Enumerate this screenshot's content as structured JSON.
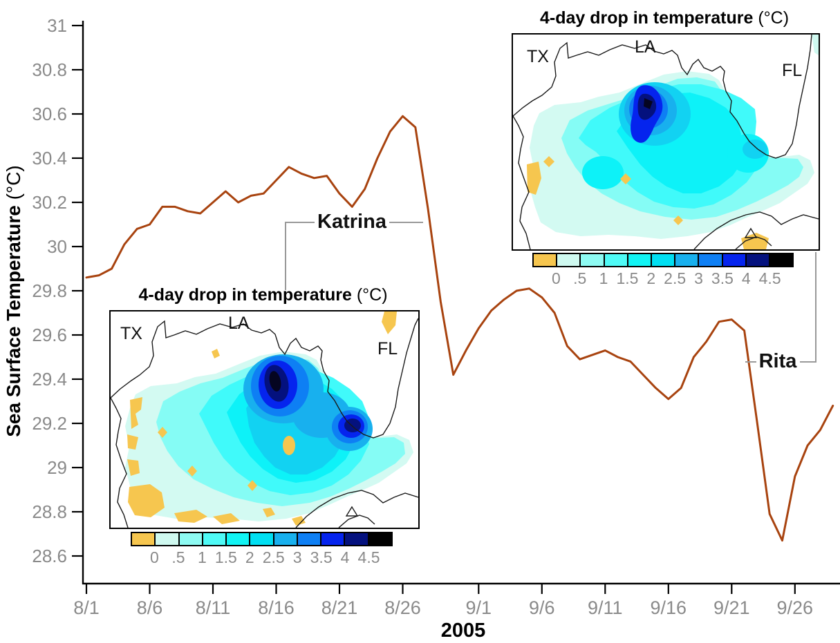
{
  "figure": {
    "xlabel": "2005",
    "ylabel_main": "Sea Surface Temperature",
    "ylabel_units": "(°C)"
  },
  "chart_data": {
    "type": "line",
    "title": "",
    "xlabel": "2005",
    "ylabel": "Sea Surface Temperature (°C)",
    "ylim": [
      28.6,
      31
    ],
    "grid": false,
    "line_color": "#A8430F",
    "y_tick_labels": [
      "31",
      "30.8",
      "30.6",
      "30.4",
      "30.2",
      "30",
      "29.8",
      "29.6",
      "29.4",
      "29.2",
      "29",
      "28.8",
      "28.6"
    ],
    "x_tick_labels": [
      "8/1",
      "8/6",
      "8/11",
      "8/16",
      "8/21",
      "8/26",
      "9/1",
      "9/6",
      "9/11",
      "9/16",
      "9/21",
      "9/26"
    ],
    "series": [
      {
        "name": "Sea surface temperature",
        "x": [
          "8/1",
          "8/2",
          "8/3",
          "8/4",
          "8/5",
          "8/6",
          "8/7",
          "8/8",
          "8/9",
          "8/10",
          "8/11",
          "8/12",
          "8/13",
          "8/14",
          "8/15",
          "8/16",
          "8/17",
          "8/18",
          "8/19",
          "8/20",
          "8/21",
          "8/22",
          "8/23",
          "8/24",
          "8/25",
          "8/26",
          "8/27",
          "8/28",
          "8/29",
          "8/30",
          "8/31",
          "9/1",
          "9/2",
          "9/3",
          "9/4",
          "9/5",
          "9/6",
          "9/7",
          "9/8",
          "9/9",
          "9/10",
          "9/11",
          "9/12",
          "9/13",
          "9/14",
          "9/15",
          "9/16",
          "9/17",
          "9/18",
          "9/19",
          "9/20",
          "9/21",
          "9/22",
          "9/23",
          "9/24",
          "9/25",
          "9/26",
          "9/27",
          "9/28",
          "9/29"
        ],
        "values": [
          29.86,
          29.87,
          29.9,
          30.01,
          30.08,
          30.1,
          30.18,
          30.18,
          30.16,
          30.15,
          30.2,
          30.25,
          30.2,
          30.23,
          30.24,
          30.3,
          30.36,
          30.33,
          30.31,
          30.32,
          30.24,
          30.18,
          30.26,
          30.4,
          30.52,
          30.59,
          30.54,
          30.17,
          29.75,
          29.42,
          29.53,
          29.63,
          29.71,
          29.76,
          29.8,
          29.81,
          29.77,
          29.7,
          29.55,
          29.49,
          29.51,
          29.53,
          29.5,
          29.48,
          29.42,
          29.36,
          29.31,
          29.36,
          29.5,
          29.57,
          29.66,
          29.67,
          29.62,
          29.21,
          28.79,
          28.67,
          28.96,
          29.1,
          29.17,
          29.28
        ]
      }
    ],
    "annotations": [
      {
        "label": "Katrina",
        "points_to_date": "8/28"
      },
      {
        "label": "Rita",
        "points_to_date": "9/22"
      }
    ]
  },
  "colorbar": {
    "tick_labels": [
      "0",
      ".5",
      "1",
      "1.5",
      "2",
      "2.5",
      "3",
      "3.5",
      "4",
      "4.5"
    ],
    "colors": [
      "#F6C64F",
      "#CFF9F0",
      "#8EFBF3",
      "#4FFAF6",
      "#12F4F4",
      "#00DFF2",
      "#18B0EE",
      "#0E7FF4",
      "#0524EE",
      "#04117E",
      "#000000"
    ]
  },
  "insets": [
    {
      "id": "katrina-map",
      "title_main": "4-day drop in temperature",
      "title_units": "(°C)",
      "labels": {
        "tx": "TX",
        "la": "LA",
        "fl": "FL"
      }
    },
    {
      "id": "rita-map",
      "title_main": "4-day drop in temperature",
      "title_units": "(°C)",
      "labels": {
        "tx": "TX",
        "la": "LA",
        "fl": "FL"
      }
    }
  ]
}
